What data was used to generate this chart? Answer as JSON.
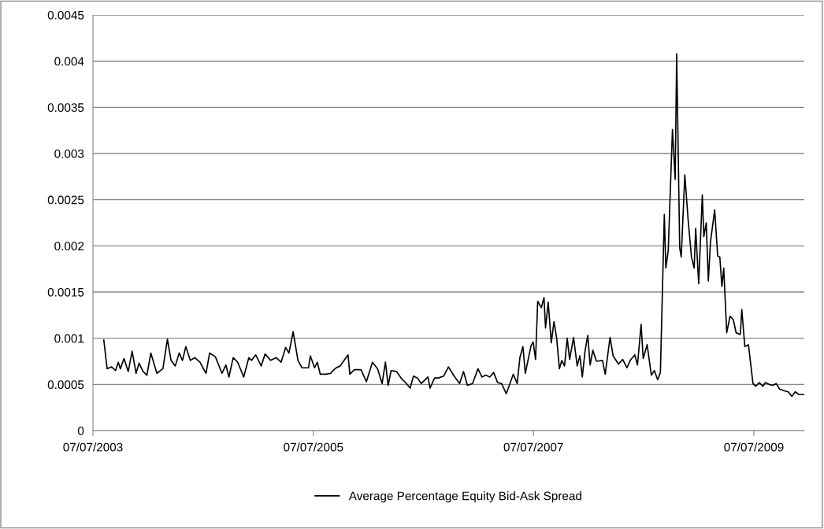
{
  "chart_data": {
    "type": "line",
    "x": [
      "2003-08-12",
      "2003-08-23",
      "2003-09-07",
      "2003-09-20",
      "2003-09-29",
      "2003-10-06",
      "2003-10-18",
      "2003-11-01",
      "2003-11-14",
      "2003-11-27",
      "2003-12-07",
      "2003-12-20",
      "2004-01-02",
      "2004-01-15",
      "2004-02-04",
      "2004-02-24",
      "2004-03-10",
      "2004-03-22",
      "2004-04-05",
      "2004-04-18",
      "2004-04-29",
      "2004-05-10",
      "2004-05-25",
      "2004-06-09",
      "2004-06-26",
      "2004-07-16",
      "2004-07-28",
      "2004-08-16",
      "2004-09-07",
      "2004-09-20",
      "2004-09-30",
      "2004-10-14",
      "2004-10-29",
      "2004-11-18",
      "2004-12-05",
      "2004-12-14",
      "2004-12-28",
      "2005-01-15",
      "2005-01-28",
      "2005-02-15",
      "2005-03-06",
      "2005-03-22",
      "2005-04-06",
      "2005-04-17",
      "2005-05-01",
      "2005-05-17",
      "2005-05-30",
      "2005-06-21",
      "2005-06-27",
      "2005-07-11",
      "2005-07-20",
      "2005-07-30",
      "2005-08-17",
      "2005-09-03",
      "2005-09-07",
      "2005-09-21",
      "2005-10-04",
      "2005-10-17",
      "2005-10-30",
      "2005-11-05",
      "2005-11-20",
      "2005-12-12",
      "2005-12-30",
      "2006-01-19",
      "2006-02-05",
      "2006-02-20",
      "2006-03-03",
      "2006-03-12",
      "2006-03-22",
      "2006-04-09",
      "2006-04-26",
      "2006-05-09",
      "2006-05-24",
      "2006-06-04",
      "2006-06-17",
      "2006-06-30",
      "2006-07-22",
      "2006-07-29",
      "2006-08-13",
      "2006-08-26",
      "2006-09-12",
      "2006-09-28",
      "2006-10-17",
      "2006-11-04",
      "2006-11-17",
      "2006-11-30",
      "2006-12-17",
      "2007-01-04",
      "2007-01-17",
      "2007-01-30",
      "2007-02-12",
      "2007-02-25",
      "2007-03-10",
      "2007-03-23",
      "2007-04-08",
      "2007-05-01",
      "2007-05-14",
      "2007-05-23",
      "2007-06-02",
      "2007-06-10",
      "2007-06-29",
      "2007-07-06",
      "2007-07-14",
      "2007-07-21",
      "2007-08-02",
      "2007-08-11",
      "2007-08-16",
      "2007-08-25",
      "2007-09-04",
      "2007-09-13",
      "2007-09-22",
      "2007-10-01",
      "2007-10-09",
      "2007-10-18",
      "2007-10-27",
      "2007-11-04",
      "2007-11-17",
      "2007-11-29",
      "2007-12-08",
      "2007-12-16",
      "2007-12-25",
      "2008-01-03",
      "2008-01-11",
      "2008-01-20",
      "2008-02-01",
      "2008-02-21",
      "2008-03-01",
      "2008-03-17",
      "2008-03-27",
      "2008-04-14",
      "2008-04-28",
      "2008-05-12",
      "2008-05-23",
      "2008-06-07",
      "2008-06-16",
      "2008-06-28",
      "2008-07-05",
      "2008-07-18",
      "2008-08-01",
      "2008-08-11",
      "2008-08-22",
      "2008-08-31",
      "2008-09-13",
      "2008-09-18",
      "2008-09-26",
      "2008-10-10",
      "2008-10-19",
      "2008-10-24",
      "2008-11-03",
      "2008-11-08",
      "2008-11-20",
      "2008-12-01",
      "2008-12-12",
      "2008-12-21",
      "2008-12-26",
      "2009-01-05",
      "2009-01-17",
      "2009-01-22",
      "2009-01-30",
      "2009-02-06",
      "2009-02-13",
      "2009-02-27",
      "2009-03-09",
      "2009-03-16",
      "2009-03-23",
      "2009-03-29",
      "2009-04-08",
      "2009-04-19",
      "2009-04-30",
      "2009-05-09",
      "2009-05-23",
      "2009-05-28",
      "2009-06-07",
      "2009-06-19",
      "2009-07-04",
      "2009-07-13",
      "2009-07-25",
      "2009-08-06",
      "2009-08-14",
      "2009-08-27",
      "2009-09-08",
      "2009-09-19",
      "2009-09-30",
      "2009-10-16",
      "2009-10-29",
      "2009-11-10",
      "2009-11-21",
      "2009-12-04",
      "2009-12-20"
    ],
    "series": [
      {
        "name": "Average Percentage Equity Bid-Ask Spread",
        "color": "#000000",
        "values": [
          0.00098,
          0.00067,
          0.00069,
          0.00065,
          0.00074,
          0.00067,
          0.00078,
          0.00064,
          0.00086,
          0.00062,
          0.00073,
          0.00064,
          0.0006,
          0.00084,
          0.00062,
          0.00067,
          0.00099,
          0.00076,
          0.0007,
          0.00084,
          0.00076,
          0.00091,
          0.00076,
          0.00079,
          0.00074,
          0.00062,
          0.00084,
          0.0008,
          0.00062,
          0.00071,
          0.00058,
          0.00079,
          0.00074,
          0.00058,
          0.00079,
          0.00076,
          0.00082,
          0.0007,
          0.00083,
          0.00076,
          0.00079,
          0.00074,
          0.0009,
          0.00084,
          0.00107,
          0.00076,
          0.00068,
          0.00068,
          0.00081,
          0.00068,
          0.00074,
          0.00061,
          0.00061,
          0.00062,
          0.00064,
          0.00068,
          0.0007,
          0.00076,
          0.00082,
          0.00061,
          0.00066,
          0.00066,
          0.00053,
          0.00074,
          0.00067,
          0.00051,
          0.00074,
          0.00049,
          0.00065,
          0.00064,
          0.00056,
          0.00052,
          0.00046,
          0.00059,
          0.00057,
          0.00051,
          0.00058,
          0.00046,
          0.00057,
          0.00057,
          0.00059,
          0.00069,
          0.00059,
          0.00051,
          0.00064,
          0.00049,
          0.00051,
          0.00067,
          0.00058,
          0.0006,
          0.00058,
          0.00063,
          0.00052,
          0.00051,
          0.0004,
          0.00061,
          0.00051,
          0.00079,
          0.00091,
          0.00062,
          0.00092,
          0.00096,
          0.00077,
          0.0014,
          0.00133,
          0.00144,
          0.00111,
          0.00139,
          0.00095,
          0.00118,
          0.001,
          0.00067,
          0.00076,
          0.0007,
          0.001,
          0.00077,
          0.00101,
          0.0007,
          0.00081,
          0.00058,
          0.00086,
          0.00103,
          0.00071,
          0.00087,
          0.00075,
          0.00076,
          0.00061,
          0.00101,
          0.00081,
          0.00072,
          0.00077,
          0.00068,
          0.00076,
          0.00082,
          0.00071,
          0.00115,
          0.00078,
          0.00093,
          0.0006,
          0.00065,
          0.00055,
          0.00063,
          0.00234,
          0.00176,
          0.00195,
          0.00326,
          0.00272,
          0.00408,
          0.00198,
          0.00188,
          0.00277,
          0.00228,
          0.00188,
          0.00176,
          0.00219,
          0.00159,
          0.00255,
          0.0021,
          0.00225,
          0.00162,
          0.00204,
          0.00239,
          0.00189,
          0.00188,
          0.00156,
          0.00176,
          0.00106,
          0.00124,
          0.0012,
          0.00106,
          0.00104,
          0.00131,
          0.00091,
          0.00093,
          0.00051,
          0.00048,
          0.00052,
          0.00048,
          0.00052,
          0.0005,
          0.00049,
          0.00051,
          0.00045,
          0.00043,
          0.00042,
          0.00037,
          0.00042,
          0.00039,
          0.00039
        ]
      }
    ],
    "xlim": [
      "2003-07-07",
      "2009-12-21"
    ],
    "xticks": [
      {
        "value": "2003-07-07",
        "label": "07/07/2003"
      },
      {
        "value": "2005-07-07",
        "label": "07/07/2005"
      },
      {
        "value": "2007-07-07",
        "label": "07/07/2007"
      },
      {
        "value": "2009-07-07",
        "label": "07/07/2009"
      }
    ],
    "ylim": [
      0,
      0.0045
    ],
    "yticks": [
      0,
      0.0005,
      0.001,
      0.0015,
      0.002,
      0.0025,
      0.003,
      0.0035,
      0.004,
      0.0045
    ],
    "grid": "y",
    "legend": "bottom",
    "marker": "none",
    "line_style": "solid"
  }
}
